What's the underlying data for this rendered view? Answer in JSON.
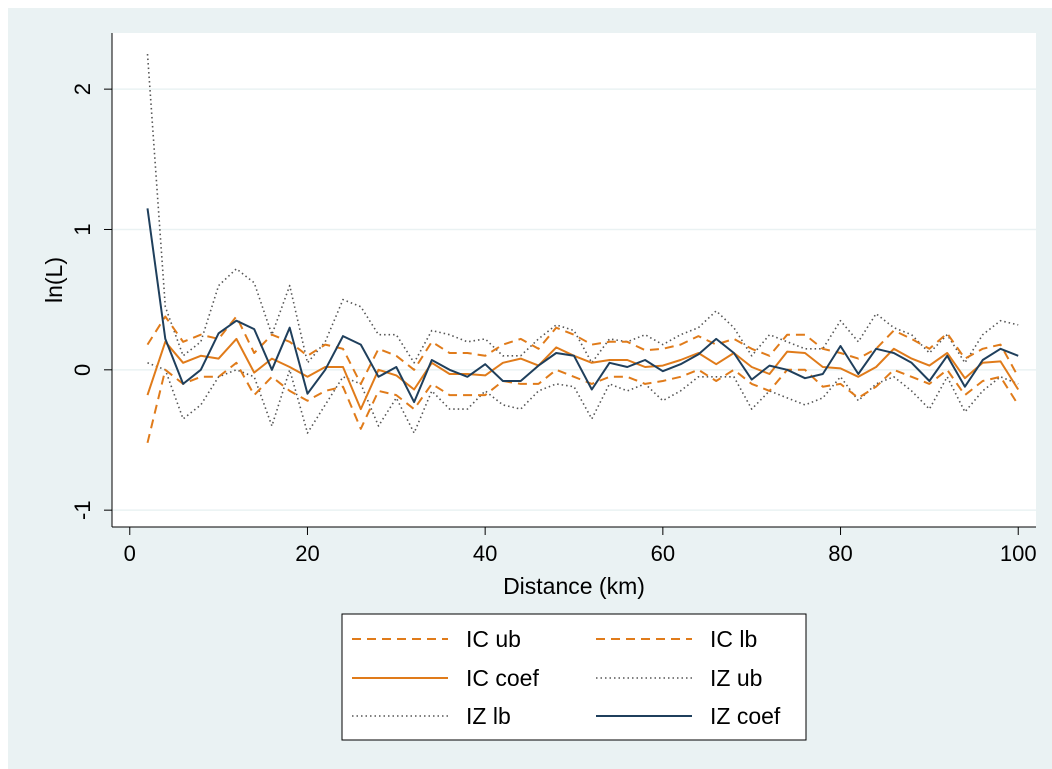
{
  "chart_data": {
    "type": "line",
    "xlabel": "Distance (km)",
    "ylabel": "ln(L)",
    "xlim": [
      -2,
      102
    ],
    "ylim": [
      -1.12,
      2.4
    ],
    "xticks": [
      0,
      20,
      40,
      60,
      80,
      100
    ],
    "xtick_labels": [
      "0",
      "20",
      "40",
      "60",
      "80",
      "100"
    ],
    "yticks": [
      -1,
      0,
      1,
      2
    ],
    "ytick_labels": [
      "-1",
      "0",
      "1",
      "2"
    ],
    "grid": "horizontal",
    "legend_position": "bottom",
    "x": [
      2,
      4,
      6,
      8,
      10,
      12,
      14,
      16,
      18,
      20,
      22,
      24,
      26,
      28,
      30,
      32,
      34,
      36,
      38,
      40,
      42,
      44,
      46,
      48,
      50,
      52,
      54,
      56,
      58,
      60,
      62,
      64,
      66,
      68,
      70,
      72,
      74,
      76,
      78,
      80,
      82,
      84,
      86,
      88,
      90,
      92,
      94,
      96,
      98,
      100
    ],
    "series": [
      {
        "name": "IC ub",
        "color": "#e07b1a",
        "style": "dashed",
        "values": [
          0.18,
          0.38,
          0.2,
          0.25,
          0.22,
          0.38,
          0.12,
          0.25,
          0.2,
          0.1,
          0.18,
          0.15,
          -0.1,
          0.15,
          0.1,
          0.0,
          0.2,
          0.12,
          0.12,
          0.1,
          0.18,
          0.22,
          0.15,
          0.3,
          0.25,
          0.18,
          0.2,
          0.2,
          0.14,
          0.15,
          0.18,
          0.24,
          0.18,
          0.22,
          0.15,
          0.1,
          0.25,
          0.25,
          0.15,
          0.12,
          0.08,
          0.15,
          0.28,
          0.22,
          0.15,
          0.26,
          0.08,
          0.15,
          0.18,
          -0.05
        ]
      },
      {
        "name": "IC lb",
        "color": "#e07b1a",
        "style": "dashed",
        "values": [
          -0.52,
          0.0,
          -0.1,
          -0.05,
          -0.05,
          0.05,
          -0.18,
          -0.05,
          -0.15,
          -0.22,
          -0.15,
          -0.12,
          -0.42,
          -0.15,
          -0.18,
          -0.28,
          -0.1,
          -0.18,
          -0.18,
          -0.18,
          -0.08,
          -0.1,
          -0.1,
          0.0,
          -0.05,
          -0.1,
          -0.05,
          -0.05,
          -0.1,
          -0.08,
          -0.05,
          0.0,
          -0.08,
          0.0,
          -0.1,
          -0.15,
          0.0,
          0.0,
          -0.12,
          -0.1,
          -0.2,
          -0.12,
          0.0,
          -0.05,
          -0.1,
          0.0,
          -0.18,
          -0.08,
          -0.05,
          -0.25
        ]
      },
      {
        "name": "IC coef",
        "color": "#e07b1a",
        "style": "solid",
        "values": [
          -0.18,
          0.2,
          0.05,
          0.1,
          0.08,
          0.22,
          -0.02,
          0.08,
          0.02,
          -0.05,
          0.02,
          0.02,
          -0.28,
          0.0,
          -0.04,
          -0.14,
          0.05,
          -0.03,
          -0.03,
          -0.04,
          0.05,
          0.08,
          0.03,
          0.16,
          0.1,
          0.05,
          0.07,
          0.07,
          0.02,
          0.03,
          0.07,
          0.12,
          0.04,
          0.12,
          0.02,
          -0.03,
          0.13,
          0.12,
          0.02,
          0.01,
          -0.05,
          0.02,
          0.15,
          0.08,
          0.03,
          0.12,
          -0.06,
          0.05,
          0.06,
          -0.14
        ]
      },
      {
        "name": "IZ ub",
        "color": "#555555",
        "style": "dotted",
        "values": [
          2.25,
          0.45,
          0.1,
          0.2,
          0.6,
          0.72,
          0.62,
          0.25,
          0.6,
          0.05,
          0.2,
          0.5,
          0.45,
          0.25,
          0.25,
          0.05,
          0.28,
          0.25,
          0.2,
          0.22,
          0.1,
          0.1,
          0.22,
          0.32,
          0.28,
          0.05,
          0.22,
          0.2,
          0.25,
          0.18,
          0.25,
          0.3,
          0.42,
          0.3,
          0.1,
          0.25,
          0.2,
          0.15,
          0.15,
          0.35,
          0.2,
          0.4,
          0.3,
          0.25,
          0.12,
          0.25,
          0.05,
          0.25,
          0.35,
          0.32
        ]
      },
      {
        "name": "IZ lb",
        "color": "#555555",
        "style": "dotted",
        "values": [
          0.05,
          0.0,
          -0.35,
          -0.25,
          -0.05,
          0.0,
          -0.05,
          -0.4,
          0.0,
          -0.45,
          -0.25,
          -0.05,
          -0.1,
          -0.4,
          -0.2,
          -0.45,
          -0.15,
          -0.28,
          -0.28,
          -0.15,
          -0.25,
          -0.28,
          -0.15,
          -0.1,
          -0.12,
          -0.35,
          -0.1,
          -0.15,
          -0.1,
          -0.22,
          -0.15,
          -0.05,
          -0.05,
          -0.05,
          -0.28,
          -0.15,
          -0.2,
          -0.25,
          -0.2,
          -0.05,
          -0.22,
          -0.1,
          -0.05,
          -0.15,
          -0.28,
          -0.05,
          -0.3,
          -0.15,
          -0.05,
          -0.1
        ]
      },
      {
        "name": "IZ coef",
        "color": "#1f3f5c",
        "style": "solid",
        "values": [
          1.15,
          0.22,
          -0.1,
          0.0,
          0.26,
          0.35,
          0.29,
          0.0,
          0.3,
          -0.17,
          0.0,
          0.24,
          0.18,
          -0.05,
          0.02,
          -0.23,
          0.07,
          0.0,
          -0.05,
          0.04,
          -0.08,
          -0.08,
          0.03,
          0.12,
          0.1,
          -0.14,
          0.05,
          0.02,
          0.07,
          -0.01,
          0.04,
          0.11,
          0.22,
          0.12,
          -0.07,
          0.03,
          0.0,
          -0.06,
          -0.03,
          0.17,
          -0.03,
          0.15,
          0.12,
          0.05,
          -0.08,
          0.1,
          -0.12,
          0.07,
          0.15,
          0.1
        ]
      }
    ],
    "legend": {
      "items": [
        {
          "label": "IC ub",
          "series": 0
        },
        {
          "label": "IC lb",
          "series": 1
        },
        {
          "label": "IC coef",
          "series": 2
        },
        {
          "label": "IZ ub",
          "series": 3
        },
        {
          "label": "IZ lb",
          "series": 4
        },
        {
          "label": "IZ coef",
          "series": 5
        }
      ]
    }
  }
}
